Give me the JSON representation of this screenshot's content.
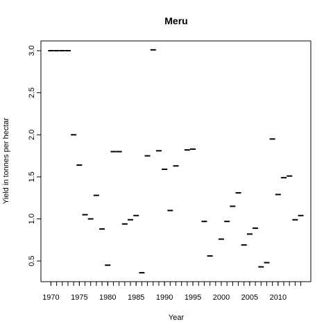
{
  "chart_data": {
    "type": "dash",
    "title": "Meru",
    "x_label": "Year",
    "y_label": "Yield in tonnes per hectar",
    "x": [
      1970,
      1971,
      1972,
      1973,
      1974,
      1975,
      1976,
      1977,
      1978,
      1979,
      1980,
      1981,
      1982,
      1983,
      1984,
      1985,
      1986,
      1987,
      1988,
      1989,
      1990,
      1991,
      1992,
      1993,
      1994,
      1995,
      1996,
      1997,
      1998,
      1999,
      2000,
      2001,
      2002,
      2003,
      2004,
      2005,
      2006,
      2007,
      2008,
      2009,
      2010,
      2011,
      2012,
      2013,
      2014
    ],
    "values": [
      3.0,
      3.0,
      3.0,
      3.0,
      2.0,
      1.64,
      1.05,
      1.0,
      1.28,
      0.88,
      0.45,
      1.8,
      1.8,
      0.94,
      0.99,
      1.04,
      0.36,
      1.75,
      3.01,
      1.81,
      1.59,
      1.1,
      1.63,
      null,
      1.82,
      1.83,
      null,
      0.97,
      0.56,
      null,
      0.76,
      0.97,
      1.15,
      1.31,
      0.69,
      0.82,
      0.89,
      0.43,
      0.48,
      1.95,
      1.29,
      1.49,
      1.51,
      0.99,
      1.04
    ],
    "color": "#000000",
    "xlim": [
      1968.24,
      2015.76
    ],
    "ylim": [
      0.254,
      3.116
    ],
    "xticks": [
      1970,
      1975,
      1980,
      1985,
      1990,
      1995,
      2000,
      2005,
      2010
    ],
    "xminor_ticks": [
      1970,
      1971,
      1972,
      1973,
      1974,
      1975,
      1976,
      1977,
      1978,
      1979,
      1980,
      1981,
      1982,
      1983,
      1984,
      1985,
      1986,
      1987,
      1988,
      1989,
      1990,
      1991,
      1992,
      1993,
      1994,
      1995,
      1996,
      1997,
      1998,
      1999,
      2000,
      2001,
      2002,
      2003,
      2004,
      2005,
      2006,
      2007,
      2008,
      2009,
      2010,
      2011,
      2012,
      2013,
      2014
    ],
    "yticks": [
      0.5,
      {
        "value": 1,
        "label": "1.0"
      },
      1.5,
      {
        "value": 2,
        "label": "2.0"
      },
      2.5,
      {
        "value": 3,
        "label": "3.0"
      }
    ]
  }
}
